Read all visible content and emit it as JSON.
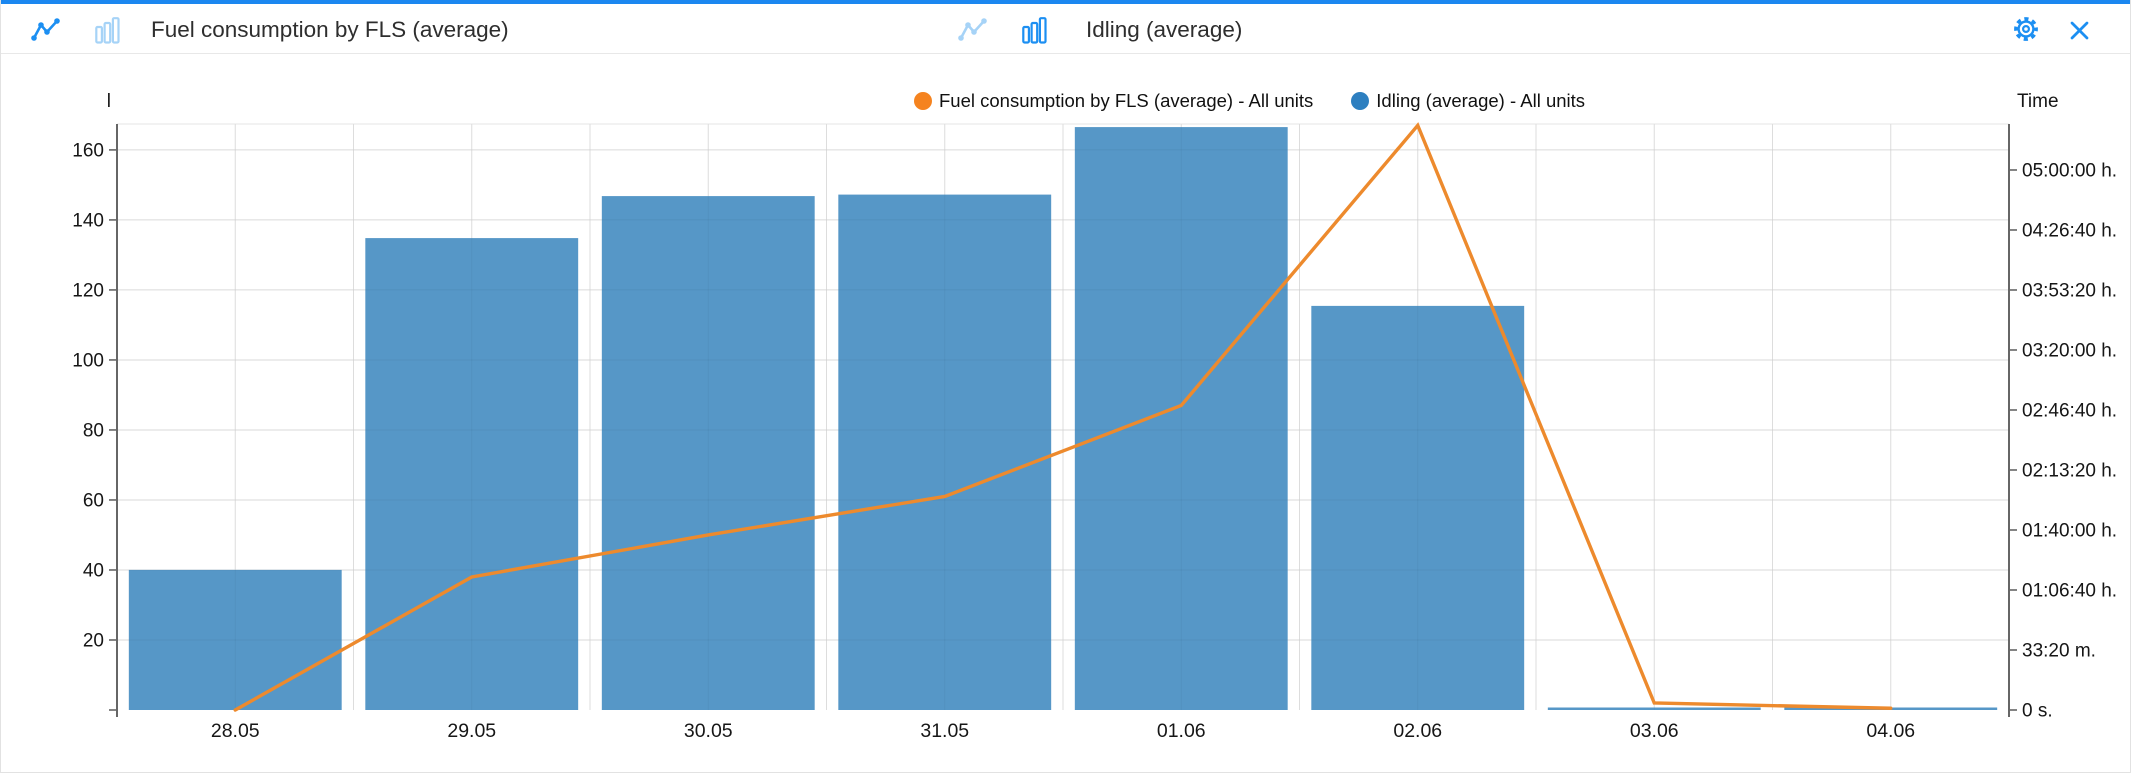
{
  "header": {
    "left_chart_title": "Fuel consumption by FLS (average)",
    "right_chart_title": "Idling (average)",
    "icons": {
      "left_line_icon": "line-chart-type (active)",
      "left_bar_icon": "bar-chart-type (inactive)",
      "right_line_icon": "line-chart-type (inactive)",
      "right_bar_icon": "bar-chart-type (active)",
      "settings_icon": "gear",
      "close_icon": "close"
    }
  },
  "legend": [
    {
      "label": "Fuel consumption by FLS (average) - All units",
      "color": "#f5831f"
    },
    {
      "label": "Idling (average) - All units",
      "color": "#2d7fc0"
    }
  ],
  "colors": {
    "accent_blue": "#1b87f0",
    "icon_active": "#1c8ff2",
    "icon_inactive": "#a6d3f7",
    "bar_fill": "#5697c7",
    "line_stroke": "#ed8a2d",
    "axis_line": "#666666",
    "gridline": "#e6e6e6",
    "text": "#161616"
  },
  "chart_data": {
    "type": "combo (bar + line, dual axis)",
    "categories": [
      "28.05",
      "29.05",
      "30.05",
      "31.05",
      "01.06",
      "02.06",
      "03.06",
      "04.06"
    ],
    "series": [
      {
        "name": "Fuel consumption by FLS (average) - All units",
        "type": "line",
        "axis": "left",
        "unit": "l",
        "color": "#ed8a2d",
        "values": [
          0,
          38,
          50,
          61,
          87,
          167,
          2,
          0.5
        ]
      },
      {
        "name": "Idling (average) - All units",
        "type": "bar",
        "axis": "right",
        "unit": "time",
        "color": "#5697c7",
        "values_seconds": [
          4670,
          15730,
          17130,
          17180,
          19430,
          13470,
          40,
          40
        ],
        "values_readable": [
          "1:17:50 h",
          "4:22:10 h",
          "4:45:30 h",
          "4:46:20 h",
          "5:23:50 h",
          "3:44:30 h",
          "~0 s",
          "~0 s"
        ]
      }
    ],
    "left_axis": {
      "label": "l",
      "ticks": [
        160,
        140,
        120,
        100,
        80,
        60,
        40,
        20
      ],
      "min": 0,
      "max": 167.4
    },
    "right_axis": {
      "label": "Time",
      "tick_labels": [
        "05:00:00 h.",
        "04:26:40 h.",
        "03:53:20 h.",
        "03:20:00 h.",
        "02:46:40 h.",
        "02:13:20 h.",
        "01:40:00 h.",
        "01:06:40 h.",
        "33:20 m.",
        "0 s."
      ],
      "tick_seconds": [
        18000,
        16000,
        14000,
        12000,
        10000,
        8000,
        6000,
        4000,
        2000,
        0
      ],
      "min": 0,
      "max": 19533
    },
    "grid": "light gray gridlines, vertical lines at category centers and boundaries",
    "legend_position": "top center"
  }
}
